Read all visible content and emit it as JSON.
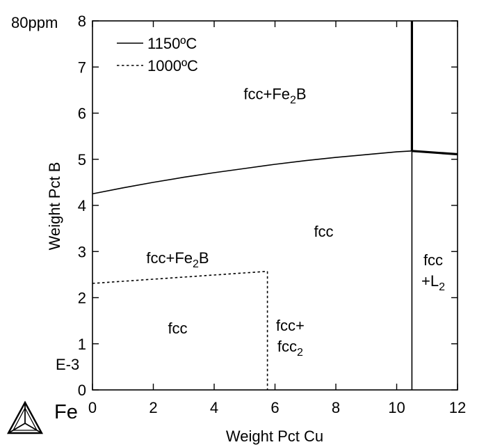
{
  "chart_data": {
    "type": "line",
    "title": "",
    "xlabel": "Weight Pct Cu",
    "ylabel": "Weight Pct B",
    "xlim": [
      0,
      12
    ],
    "ylim": [
      0,
      8
    ],
    "x_ticks": [
      "0",
      "2",
      "4",
      "6",
      "8",
      "10",
      "12"
    ],
    "y_ticks": [
      "0",
      "1",
      "2",
      "3",
      "4",
      "5",
      "6",
      "7",
      "8"
    ],
    "y_top_prefix": "80ppm",
    "y_scale_note": "E-3",
    "x_origin_element": "Fe",
    "grid": false,
    "legend_position": "top-left",
    "legend": [
      {
        "label": "1150ºC",
        "style": "solid"
      },
      {
        "label": "1000ºC",
        "style": "dotted"
      }
    ],
    "series": [
      {
        "name": "1150ºC",
        "style": "solid",
        "x": [
          0,
          1,
          2,
          3,
          4,
          5,
          6,
          7,
          8,
          9,
          10,
          10.5
        ],
        "y": [
          4.25,
          4.38,
          4.5,
          4.61,
          4.71,
          4.8,
          4.89,
          4.97,
          5.04,
          5.1,
          5.16,
          5.18
        ]
      },
      {
        "name": "1150ºC",
        "style": "solid",
        "x": [
          10.5,
          10.5
        ],
        "y": [
          0,
          5.18
        ]
      },
      {
        "name": "1150ºC",
        "style": "solid-thick",
        "x": [
          10.5,
          10.5
        ],
        "y": [
          5.18,
          8
        ]
      },
      {
        "name": "1150ºC",
        "style": "solid-thick",
        "x": [
          10.5,
          12
        ],
        "y": [
          5.18,
          5.11
        ]
      },
      {
        "name": "1000ºC",
        "style": "dotted",
        "x": [
          0,
          5.75
        ],
        "y": [
          2.31,
          2.57
        ]
      },
      {
        "name": "1000ºC",
        "style": "dotted",
        "x": [
          5.75,
          5.75
        ],
        "y": [
          2.57,
          0
        ]
      }
    ],
    "annotations": [
      {
        "name": "region-fcc-fe2b-upper",
        "lines": [
          [
            {
              "t": "fcc+Fe"
            },
            {
              "t": "2",
              "sub": true
            },
            {
              "t": "B"
            }
          ]
        ],
        "x": 6.0,
        "y": 6.3
      },
      {
        "name": "region-fcc-upper",
        "lines": [
          [
            {
              "t": "fcc"
            }
          ]
        ],
        "x": 7.6,
        "y": 3.32
      },
      {
        "name": "region-fcc-fe2b-lower",
        "lines": [
          [
            {
              "t": "fcc+Fe"
            },
            {
              "t": "2",
              "sub": true
            },
            {
              "t": "B"
            }
          ]
        ],
        "x": 2.8,
        "y": 2.75
      },
      {
        "name": "region-fcc-lower",
        "lines": [
          [
            {
              "t": "fcc"
            }
          ]
        ],
        "x": 2.8,
        "y": 1.22
      },
      {
        "name": "region-fcc-fcc2",
        "lines": [
          [
            {
              "t": "fcc+"
            }
          ],
          [
            {
              "t": "fcc"
            },
            {
              "t": "2",
              "sub": true
            }
          ]
        ],
        "x": 6.5,
        "y": 1.28
      },
      {
        "name": "region-fcc-l2",
        "lines": [
          [
            {
              "t": "fcc"
            }
          ],
          [
            {
              "t": "+L"
            },
            {
              "t": "2",
              "sub": true
            }
          ]
        ],
        "x": 11.2,
        "y": 2.7
      }
    ]
  }
}
